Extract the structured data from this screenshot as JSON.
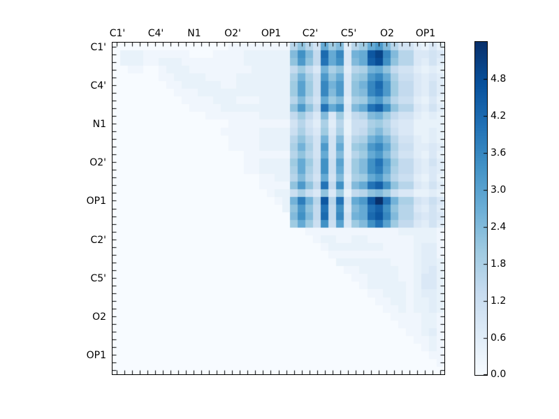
{
  "figure": {
    "background": "#ffffff"
  },
  "colormap": {
    "name": "Blues",
    "stops": [
      "#f7fbff",
      "#deebf7",
      "#c6dbef",
      "#9ecae1",
      "#6baed6",
      "#4292c6",
      "#2171b5",
      "#08519c",
      "#08306b"
    ]
  },
  "colorbar": {
    "tick_labels_top_to_bottom": [
      "4.8",
      "4.2",
      "3.6",
      "3.0",
      "2.4",
      "1.8",
      "1.2",
      "0.6",
      "0.0"
    ]
  },
  "chart_data": {
    "type": "heatmap",
    "title": "",
    "xlabel": "",
    "ylabel": "",
    "grid_size": 43,
    "x_labels": [
      "C1'",
      "C4'",
      "N1",
      "O2'",
      "OP1",
      "C2'",
      "C5'",
      "O2",
      "OP1"
    ],
    "y_labels": [
      "C1'",
      "C4'",
      "N1",
      "O2'",
      "OP1",
      "C2'",
      "C5'",
      "O2",
      "OP1"
    ],
    "label_grid_positions": [
      0,
      5,
      10,
      15,
      20,
      25,
      30,
      35,
      40
    ],
    "vmin": 0.0,
    "vmax": 5.4,
    "colorbar_tick_values": [
      0.0,
      0.6,
      1.2,
      1.8,
      2.4,
      3.0,
      3.6,
      4.2,
      4.8
    ],
    "grid": false,
    "legend_position": "right-colorbar",
    "value_encoding": {
      "alphabet": "0123456789abcdefghijklmnopqr",
      "step": 0.2,
      "description": "cell value = index_of(char in alphabet) * 0.2"
    },
    "matrix_rows": [
      "000000000000000111111118b85eac38aegc8553242",
      "02221111110001111222222chc7lei4denpic884454",
      "02221122211111111222222bgb7keh4cemohb884353",
      "001100122211111111222227a74d9b389deb7553232",
      "000000112222111122222229d96gbe4abgie9664343",
      "00000001122222112222222afa6idg4bdilga774353",
      "00000000111222222222222afa6icg4bcikga774353",
      "000000000111122211122228c85eac39aegc8663242",
      "00000000001111222222222bgb7keh4cekmhb884353",
      "000000000000111111122227a74c4a378cda7553232",
      "0000000000000001111111158539382669a85442222",
      "000000000000001111122226964a49267ac96442232",
      "000000000000000111122228b85d5c389dfc8553232",
      "000000000000000111122229d95g5e3abgie9663343",
      "000000000000000001111118b85e5c38aegc8553242",
      "00000000000000000112222aea6h6f4achkfa774353",
      "000000000000000001122229e96h6e4achje9774343",
      "000000000000000000011228c85e5c39aegc8663242",
      "00000000000000000001111bgb7k7h4cekmhb884353",
      "000000000000000000001226964b4a278bca6442232",
      "00000000000000000000012djd8n8k5egnrkd995464",
      "00000000000000000000002bgb7k7h4cekmhb884353",
      "00000000000000000000000chc7l7i5delnic885454",
      "00000000000000000000000aea6h6f4achkfa774353",
      "0000000000000000000000000111111111111222221",
      "0000000000000000000000000012211221111112221",
      "0000000000000000000000000001222222211112331",
      "0000000000000000000000000000111111111112331",
      "0000000000000000000000000000022222221112332",
      "0000000000000000000000000000001122222112342",
      "0000000000000000000000000000000112222112442",
      "0000000000000000000000000000000012222212442",
      "0000000000000000000000000000000001122212332",
      "0000000000000000000000000000000000112212232",
      "0000000000000000000000000000000000011212232",
      "0000000000000000000000000000000000001111221",
      "0000000000000000000000000000000000000111221",
      "0000000000000000000000000000000000000011231",
      "0000000000000000000000000000000000000001121",
      "0000000000000000000000000000000000000000121",
      "0000000000000000000000000000000000000000011",
      "0000000000000000000000000000000000000000001",
      "0000000000000000000000000000000000000000000"
    ]
  }
}
